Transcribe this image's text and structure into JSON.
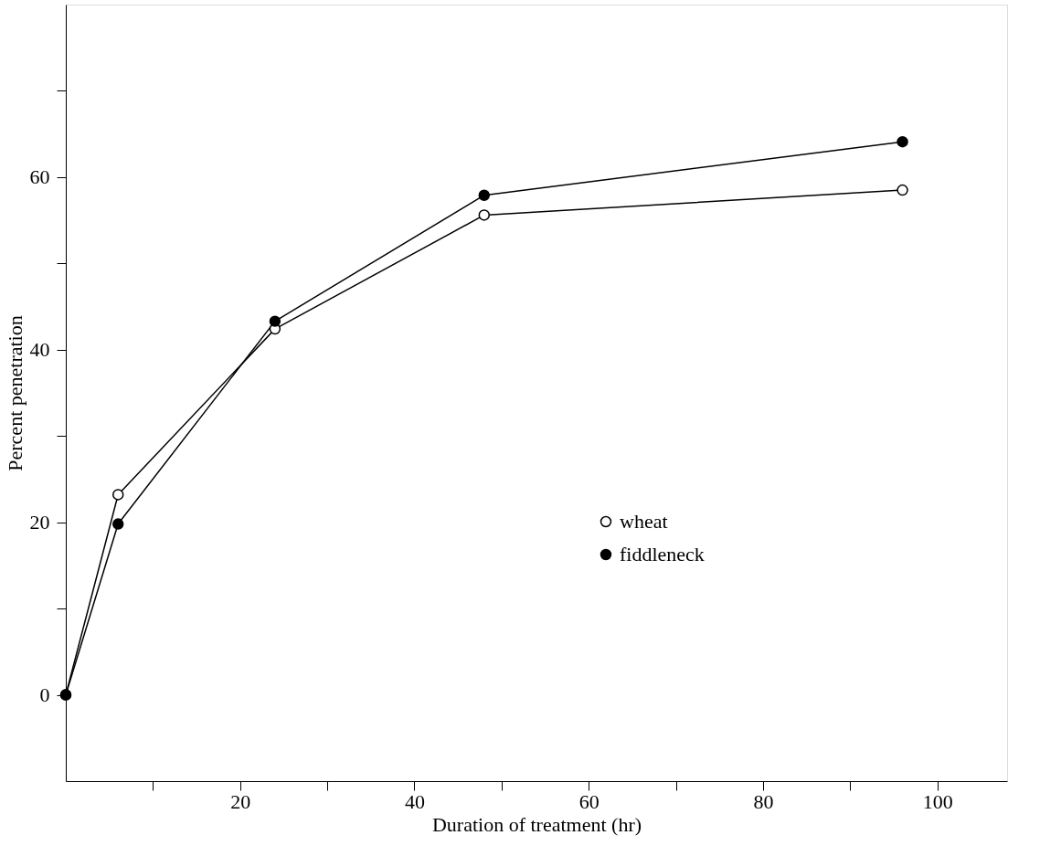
{
  "chart_data": {
    "type": "line",
    "xlabel": "Duration of treatment (hr)",
    "ylabel": "Percent penetration",
    "x": [
      0,
      6,
      24,
      48,
      96
    ],
    "series": [
      {
        "name": "wheat",
        "color": "#000000",
        "values": [
          0,
          23.2,
          42.4,
          55.6,
          58.5
        ]
      },
      {
        "name": "fiddleneck",
        "color": "#000000",
        "values": [
          0,
          19.8,
          43.3,
          57.9,
          64.1
        ]
      }
    ],
    "xlim": [
      0,
      108
    ],
    "ylim": [
      -10,
      80
    ],
    "xticks": [
      {
        "value": 10,
        "label": null
      },
      20,
      {
        "value": 30,
        "label": null
      },
      40,
      {
        "value": 50,
        "label": null
      },
      60,
      {
        "value": 70,
        "label": null
      },
      80,
      {
        "value": 90,
        "label": null
      },
      100
    ],
    "yticks": [
      0,
      {
        "value": 10,
        "label": null
      },
      20,
      {
        "value": 30,
        "label": null
      },
      40,
      {
        "value": 50,
        "label": null
      },
      60,
      {
        "value": 70,
        "label": null
      }
    ],
    "marker": "circle",
    "line_style": "solid",
    "grid": false,
    "legend": "right"
  }
}
